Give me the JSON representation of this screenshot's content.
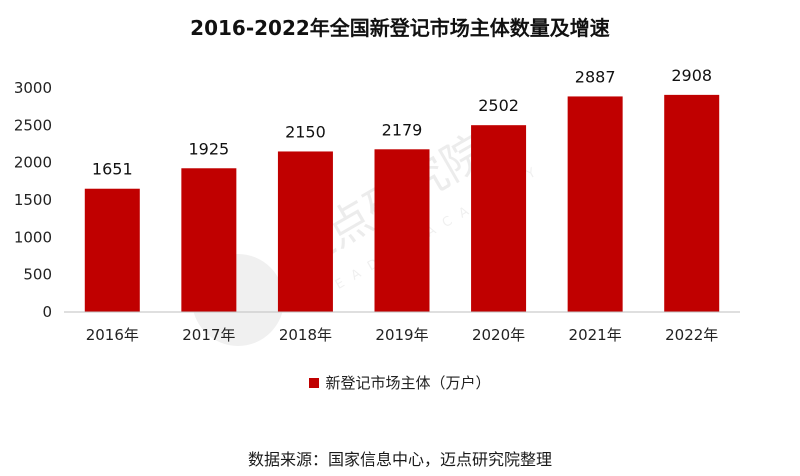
{
  "title": "2016-2022年全国新登记市场主体数量及增速",
  "source_note": "数据来源：国家信息中心，迈点研究院整理",
  "watermark": {
    "logo_text": "迈点研究院",
    "sub_text": "MEADIN ACADEMY"
  },
  "chart_data": {
    "type": "bar",
    "title": "2016-2022年全国新登记市场主体数量及增速",
    "categories": [
      "2016年",
      "2017年",
      "2018年",
      "2019年",
      "2020年",
      "2021年",
      "2022年"
    ],
    "series": [
      {
        "name": "新登记市场主体（万户）",
        "values": [
          1651,
          1925,
          2150,
          2179,
          2502,
          2887,
          2908
        ],
        "color": "#c00000"
      }
    ],
    "ylim": [
      0,
      3000
    ],
    "yticks": [
      0,
      500,
      1000,
      1500,
      2000,
      2500,
      3000
    ],
    "grid": false,
    "legend_position": "bottom",
    "data_labels": true
  }
}
